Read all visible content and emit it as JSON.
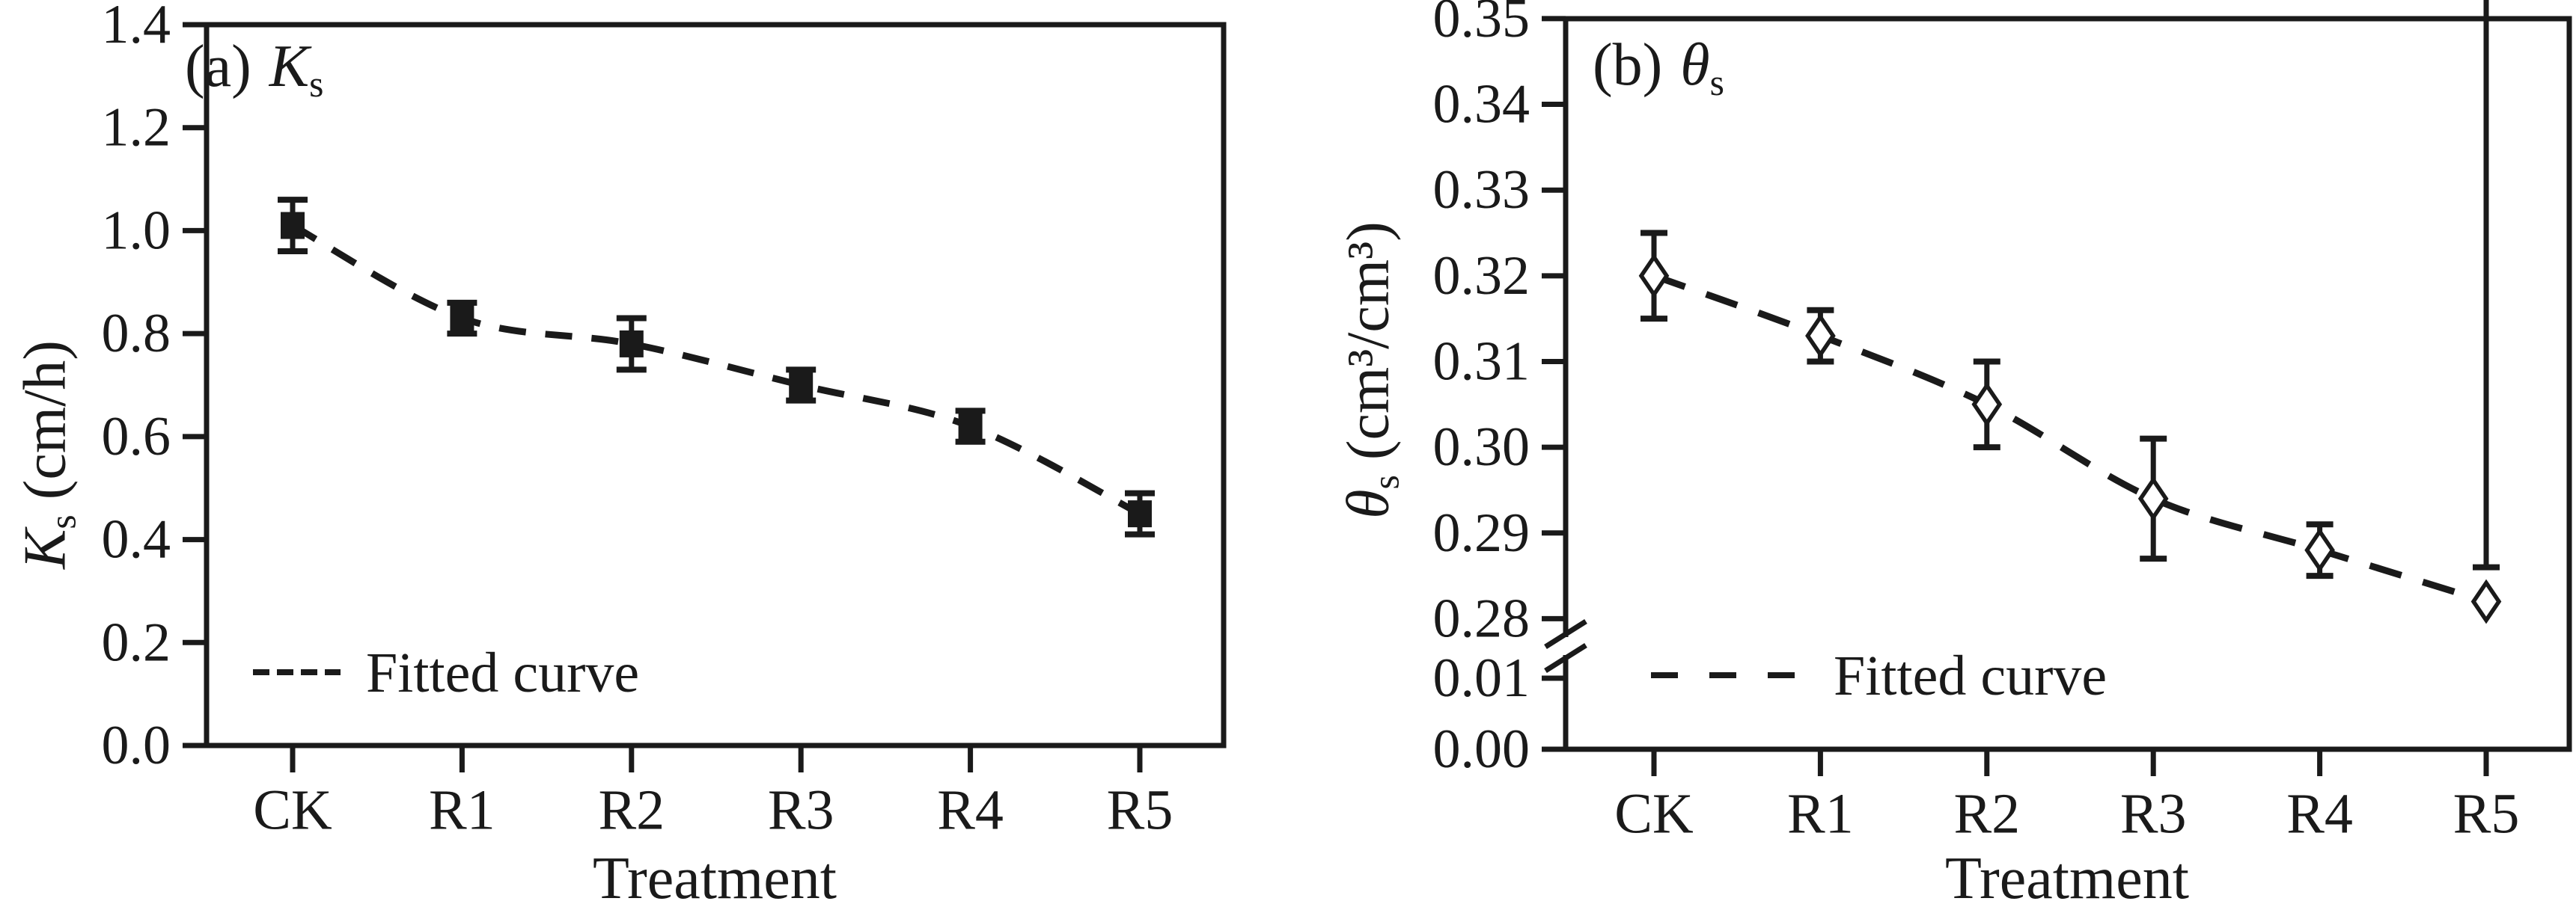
{
  "figure": {
    "background_color": "#ffffff",
    "ink_color": "#1a1a1a",
    "description": "Two-panel scatter figure with error bars and dashed fitted curves versus treatment"
  },
  "chart_data": [
    {
      "type": "scatter",
      "panel_label": "(a)",
      "symbol": "K",
      "symbol_sub": "s",
      "ylabel": {
        "symbol": "K",
        "sub": "s",
        "unit": " (cm/h)"
      },
      "xlabel": "Treatment",
      "legend_label": "Fitted curve",
      "legend_position": "lower-left inside axes",
      "categories": [
        "CK",
        "R1",
        "R2",
        "R3",
        "R4",
        "R5"
      ],
      "values": [
        1.01,
        0.83,
        0.78,
        0.7,
        0.62,
        0.45
      ],
      "error_bars": [
        0.05,
        0.03,
        0.05,
        0.03,
        0.03,
        0.04
      ],
      "marker": "filled-square",
      "fit_line_style": "dashed",
      "grid": false,
      "ylim": [
        0.0,
        1.4
      ],
      "yticks": [
        {
          "label": "1.4",
          "value": 1.4
        },
        {
          "label": "1.2",
          "value": 1.2
        },
        {
          "label": "1.0",
          "value": 1.0
        },
        {
          "label": "0.8",
          "value": 0.8
        },
        {
          "label": "0.6",
          "value": 0.6
        },
        {
          "label": "0.4",
          "value": 0.4
        },
        {
          "label": "0.2",
          "value": 0.2
        },
        {
          "label": "0.0",
          "value": 0.0
        }
      ]
    },
    {
      "type": "scatter",
      "panel_label": "(b)",
      "symbol": "θ",
      "symbol_sub": "s",
      "ylabel": {
        "symbol": "θ",
        "sub": "s",
        "unit": " (cm³/cm³)"
      },
      "xlabel": "Treatment",
      "legend_label": "Fitted curve",
      "legend_position": "lower-left inside axes",
      "categories": [
        "CK",
        "R1",
        "R2",
        "R3",
        "R4",
        "R5"
      ],
      "values": [
        0.32,
        0.313,
        0.305,
        0.294,
        0.288,
        0.282
      ],
      "error_bars": [
        0.005,
        0.003,
        0.005,
        0.007,
        0.003,
        0.004
      ],
      "marker": "open-diamond",
      "fit_line_style": "dashed",
      "grid": false,
      "axis_break": true,
      "ylim_upper": [
        0.28,
        0.35
      ],
      "ylim_lower": [
        0.0,
        0.01
      ],
      "yticks": [
        {
          "label": "0.35",
          "value": 0.35
        },
        {
          "label": "0.34",
          "value": 0.34
        },
        {
          "label": "0.33",
          "value": 0.33
        },
        {
          "label": "0.32",
          "value": 0.32
        },
        {
          "label": "0.31",
          "value": 0.31
        },
        {
          "label": "0.30",
          "value": 0.3
        },
        {
          "label": "0.29",
          "value": 0.29
        },
        {
          "label": "0.28",
          "value": 0.28
        }
      ],
      "yticks_lower": [
        {
          "label": "0.01",
          "value": 0.01
        },
        {
          "label": "0.00",
          "value": 0.0
        }
      ]
    }
  ]
}
